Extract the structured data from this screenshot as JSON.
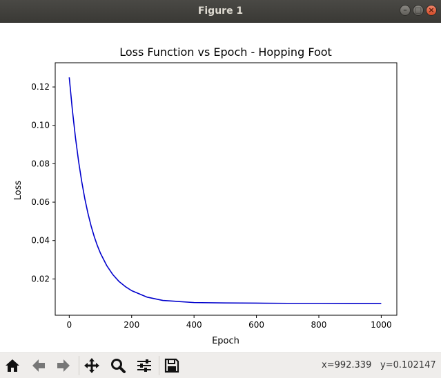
{
  "window": {
    "title": "Figure 1"
  },
  "chart_data": {
    "type": "line",
    "title": "Loss Function vs Epoch - Hopping Foot",
    "xlabel": "Epoch",
    "ylabel": "Loss",
    "xlim": [
      -45,
      1050
    ],
    "ylim": [
      0.0011,
      0.1326
    ],
    "xticks": [
      0,
      200,
      400,
      600,
      800,
      1000
    ],
    "yticks": [
      0.02,
      0.04,
      0.06,
      0.08,
      0.1,
      0.12
    ],
    "ytick_labels": [
      "0.02",
      "0.04",
      "0.06",
      "0.08",
      "0.10",
      "0.12"
    ],
    "xtick_labels": [
      "0",
      "200",
      "400",
      "600",
      "800",
      "1000"
    ],
    "series": [
      {
        "color": "#0000cc",
        "x": [
          0,
          10,
          20,
          30,
          40,
          50,
          60,
          70,
          80,
          90,
          100,
          120,
          140,
          160,
          180,
          200,
          250,
          300,
          400,
          500,
          600,
          700,
          800,
          900,
          1000
        ],
        "values": [
          0.125,
          0.108,
          0.0935,
          0.0812,
          0.0707,
          0.0617,
          0.0541,
          0.0476,
          0.0421,
          0.0374,
          0.0334,
          0.027,
          0.0222,
          0.0186,
          0.016,
          0.0139,
          0.0105,
          0.0088,
          0.0077,
          0.0075,
          0.0074,
          0.0073,
          0.0073,
          0.0072,
          0.0072
        ]
      }
    ],
    "grid": false
  },
  "toolbar": {
    "coords_x": "x=992.339",
    "coords_y": "y=0.102147",
    "buttons": [
      {
        "name": "home-icon"
      },
      {
        "name": "back-icon"
      },
      {
        "name": "forward-icon"
      },
      {
        "name": "pan-icon"
      },
      {
        "name": "zoom-icon"
      },
      {
        "name": "configure-subplots-icon"
      },
      {
        "name": "save-icon"
      }
    ]
  }
}
